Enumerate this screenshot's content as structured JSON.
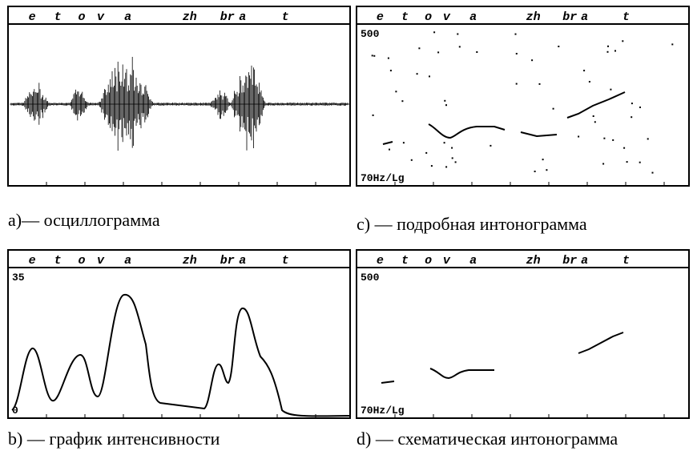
{
  "panels": [
    {
      "header": [
        "e",
        "t",
        "o",
        "v",
        "a",
        "zh",
        "br",
        "a",
        "t"
      ],
      "caption": "a)— осциллограмма"
    },
    {
      "header": [
        "e",
        "t",
        "o",
        "v",
        "a",
        "zh",
        "br",
        "a",
        "t"
      ],
      "top_label": "500",
      "bottom_label": "70Hz/Lg",
      "caption": "c) — подробная интонограмма"
    },
    {
      "header": [
        "e",
        "t",
        "o",
        "v",
        "a",
        "zh",
        "br",
        "a",
        "t"
      ],
      "top_label": "35",
      "bottom_label": "0",
      "caption": "b) — график интенсивности"
    },
    {
      "header": [
        "e",
        "t",
        "o",
        "v",
        "a",
        "zh",
        "br",
        "a",
        "t"
      ],
      "top_label": "500",
      "bottom_label": "70Hz/Lg",
      "caption": "d) — схематическая интонограмма"
    }
  ]
}
